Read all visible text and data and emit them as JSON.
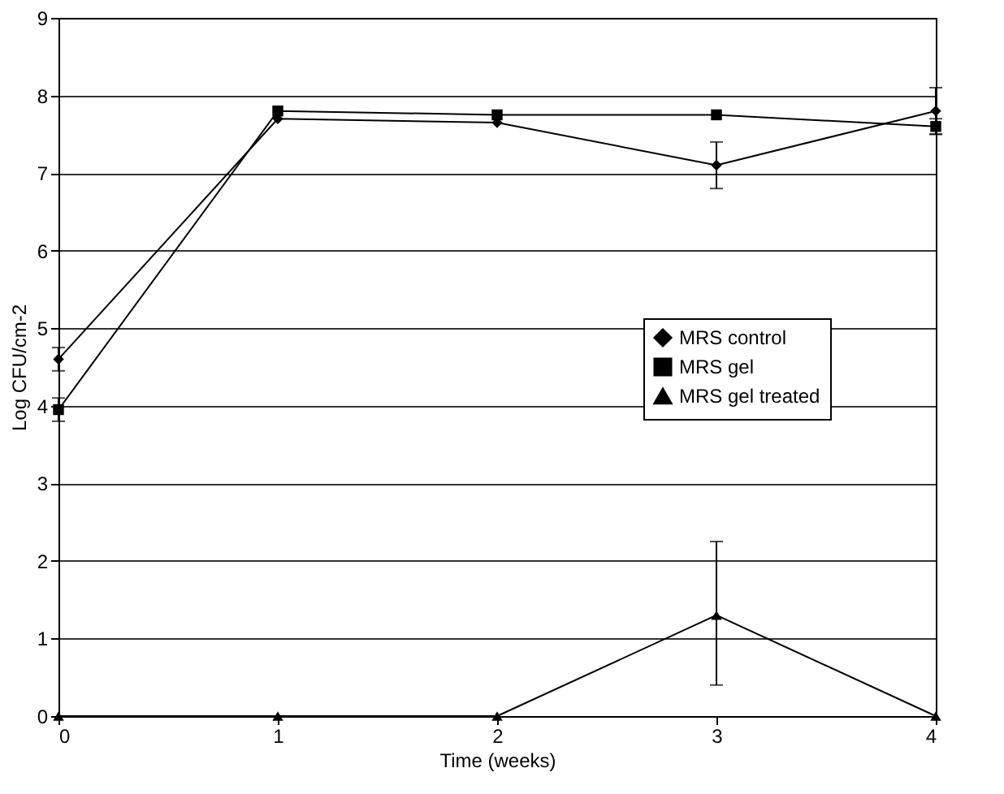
{
  "chart_data": {
    "type": "line",
    "xlabel": "Time (weeks)",
    "ylabel": "Log CFU/cm-2",
    "x": [
      0,
      1,
      2,
      3,
      4
    ],
    "xlim": [
      0,
      4
    ],
    "xticks": [
      0,
      1,
      2,
      3,
      4
    ],
    "ylim": [
      0,
      9
    ],
    "yticks": [
      0,
      1,
      2,
      3,
      4,
      5,
      6,
      7,
      8,
      9
    ],
    "grid": "y",
    "legend": "right",
    "series": [
      {
        "name": "MRS control",
        "color": "#000000",
        "marker": "diamond",
        "values": [
          4.6,
          7.7,
          7.65,
          7.1,
          7.8
        ],
        "errors": [
          0.15,
          null,
          null,
          0.3,
          0.3
        ]
      },
      {
        "name": "MRS gel",
        "color": "#000000",
        "marker": "square",
        "values": [
          3.95,
          7.8,
          7.75,
          7.75,
          7.6
        ],
        "errors": [
          0.15,
          null,
          null,
          null,
          0.1
        ]
      },
      {
        "name": "MRS gel treated",
        "color": "#000000",
        "marker": "triangle",
        "values": [
          0,
          0,
          0,
          1.3,
          0
        ],
        "errors": [
          null,
          null,
          null,
          [
            0.4,
            2.25
          ],
          null
        ]
      }
    ]
  }
}
